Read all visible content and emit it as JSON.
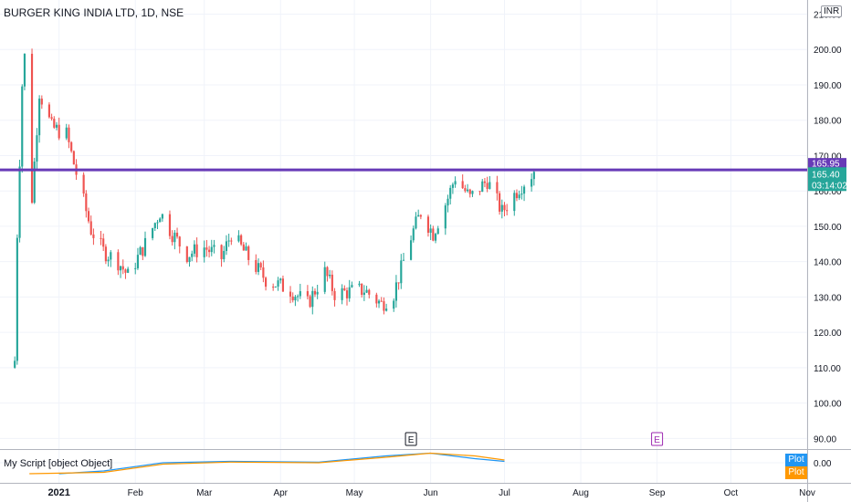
{
  "header": {
    "symbol_title": "BURGER KING INDIA LTD, 1D, NSE",
    "currency": "INR"
  },
  "indicator": {
    "title": "My Script [object Object]",
    "zero_label": "0.00",
    "plot_labels": [
      "Plot",
      "Plot"
    ],
    "plot_colors": [
      "#2196f3",
      "#ff9800"
    ]
  },
  "price_axis": {
    "ticks": [
      90,
      100,
      110,
      120,
      130,
      140,
      150,
      160,
      170,
      180,
      190,
      200,
      210
    ],
    "tick_labels": [
      "90.00",
      "100.00",
      "110.00",
      "120.00",
      "130.00",
      "140.00",
      "150.00",
      "160.00",
      "170.00",
      "180.00",
      "190.00",
      "200.00",
      "210.00"
    ]
  },
  "badges": {
    "resistance_price": "165.95",
    "last_price": "165.40",
    "countdown": "03:14:02"
  },
  "events": [
    {
      "label": "E",
      "date": "2021-05-24",
      "style": "past"
    },
    {
      "label": "E",
      "date": "2021-09-01",
      "style": "future"
    }
  ],
  "colors": {
    "up": "#26a69a",
    "down": "#ef5350",
    "resistance": "#673ab7",
    "grid": "#f0f3fa",
    "axis_text": "#131722"
  },
  "chart_data": {
    "type": "candlestick",
    "title": "BURGER KING INDIA LTD, 1D, NSE",
    "x_axis": {
      "tick_labels": [
        "2021",
        "Feb",
        "Mar",
        "Apr",
        "May",
        "Jun",
        "Jul",
        "Aug",
        "Sep",
        "Oct",
        "Nov"
      ],
      "tick_dates": [
        "2021-01-01",
        "2021-02-01",
        "2021-03-01",
        "2021-04-01",
        "2021-05-01",
        "2021-06-01",
        "2021-07-01",
        "2021-08-01",
        "2021-09-01",
        "2021-10-01",
        "2021-11-01"
      ],
      "range": [
        "2020-12-08",
        "2021-11-01"
      ]
    },
    "y_axis": {
      "range": [
        87,
        214
      ],
      "position": "right",
      "grid": true
    },
    "resistance_line": 165.95,
    "anchors": [
      {
        "date": "2020-12-14",
        "price": 112
      },
      {
        "date": "2020-12-15",
        "price": 148
      },
      {
        "date": "2020-12-17",
        "price": 190
      },
      {
        "date": "2020-12-18",
        "price": 198
      },
      {
        "date": "2020-12-21",
        "price": 158
      },
      {
        "date": "2020-12-24",
        "price": 188
      },
      {
        "date": "2020-12-29",
        "price": 178
      },
      {
        "date": "2021-01-04",
        "price": 176
      },
      {
        "date": "2021-01-08",
        "price": 165
      },
      {
        "date": "2021-01-14",
        "price": 149
      },
      {
        "date": "2021-01-19",
        "price": 143
      },
      {
        "date": "2021-01-25",
        "price": 140
      },
      {
        "date": "2021-01-29",
        "price": 136
      },
      {
        "date": "2021-02-05",
        "price": 145
      },
      {
        "date": "2021-02-11",
        "price": 154
      },
      {
        "date": "2021-02-16",
        "price": 148
      },
      {
        "date": "2021-02-22",
        "price": 142
      },
      {
        "date": "2021-03-01",
        "price": 144
      },
      {
        "date": "2021-03-08",
        "price": 141
      },
      {
        "date": "2021-03-12",
        "price": 148
      },
      {
        "date": "2021-03-19",
        "price": 141
      },
      {
        "date": "2021-03-26",
        "price": 135
      },
      {
        "date": "2021-04-05",
        "price": 132
      },
      {
        "date": "2021-04-12",
        "price": 128
      },
      {
        "date": "2021-04-19",
        "price": 137
      },
      {
        "date": "2021-04-23",
        "price": 131
      },
      {
        "date": "2021-05-05",
        "price": 132
      },
      {
        "date": "2021-05-12",
        "price": 128
      },
      {
        "date": "2021-05-17",
        "price": 131
      },
      {
        "date": "2021-05-24",
        "price": 147
      },
      {
        "date": "2021-05-28",
        "price": 154
      },
      {
        "date": "2021-06-02",
        "price": 148
      },
      {
        "date": "2021-06-08",
        "price": 158
      },
      {
        "date": "2021-06-11",
        "price": 164
      },
      {
        "date": "2021-06-17",
        "price": 158
      },
      {
        "date": "2021-06-24",
        "price": 163
      },
      {
        "date": "2021-06-30",
        "price": 154
      },
      {
        "date": "2021-07-07",
        "price": 161
      },
      {
        "date": "2021-07-13",
        "price": 165.4
      }
    ],
    "series": [
      {
        "values": [
          [
            1.0,
            -8
          ],
          [
            1.6,
            -6
          ],
          [
            2.4,
            0
          ],
          [
            3.3,
            1
          ],
          [
            4.5,
            0.5
          ],
          [
            5.4,
            5
          ],
          [
            6.0,
            7
          ],
          [
            6.6,
            3
          ],
          [
            7.0,
            1
          ]
        ]
      },
      {
        "values": [
          [
            0.6,
            -8
          ],
          [
            1.6,
            -7
          ],
          [
            2.4,
            -1
          ],
          [
            3.3,
            0.5
          ],
          [
            4.5,
            0
          ],
          [
            5.4,
            4
          ],
          [
            6.0,
            7
          ],
          [
            6.6,
            5
          ],
          [
            7.0,
            2
          ]
        ]
      }
    ]
  }
}
